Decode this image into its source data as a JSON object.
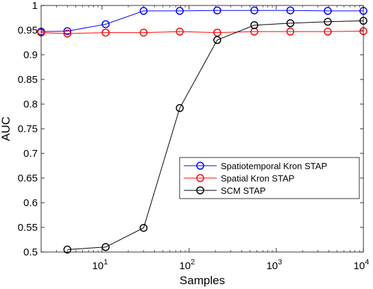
{
  "chart_data": {
    "type": "line",
    "xscale": "log",
    "xlim": [
      2,
      10000
    ],
    "ylim": [
      0.5,
      1
    ],
    "xlabel": "Samples",
    "ylabel": "AUC",
    "grid": false,
    "legend_position": "center-right",
    "x_ticks": [
      {
        "value": 10,
        "base": "10",
        "exp": "1"
      },
      {
        "value": 100,
        "base": "10",
        "exp": "2"
      },
      {
        "value": 1000,
        "base": "10",
        "exp": "3"
      },
      {
        "value": 10000,
        "base": "10",
        "exp": "4"
      }
    ],
    "y_ticks": [
      {
        "value": 0.5,
        "label": "0.5"
      },
      {
        "value": 0.55,
        "label": "0.55"
      },
      {
        "value": 0.6,
        "label": "0.6"
      },
      {
        "value": 0.65,
        "label": "0.65"
      },
      {
        "value": 0.7,
        "label": "0.7"
      },
      {
        "value": 0.75,
        "label": "0.75"
      },
      {
        "value": 0.8,
        "label": "0.8"
      },
      {
        "value": 0.85,
        "label": "0.85"
      },
      {
        "value": 0.9,
        "label": "0.9"
      },
      {
        "value": 0.95,
        "label": "0.95"
      },
      {
        "value": 1,
        "label": "1"
      }
    ],
    "series": [
      {
        "name": "Spatiotemporal Kron STAP",
        "color": "#0000ff",
        "marker": "circle",
        "x": [
          2,
          4,
          11,
          30,
          78,
          210,
          560,
          1450,
          3900,
          10000
        ],
        "y": [
          0.947,
          0.948,
          0.962,
          0.989,
          0.989,
          0.99,
          0.99,
          0.99,
          0.989,
          0.989
        ]
      },
      {
        "name": "Spatial Kron STAP",
        "color": "#ff0000",
        "marker": "circle",
        "x": [
          2,
          4,
          11,
          30,
          78,
          210,
          560,
          1450,
          3900,
          10000
        ],
        "y": [
          0.945,
          0.943,
          0.945,
          0.945,
          0.947,
          0.945,
          0.947,
          0.947,
          0.947,
          0.948
        ]
      },
      {
        "name": "SCM STAP",
        "color": "#000000",
        "marker": "circle",
        "x": [
          4,
          11,
          30,
          78,
          210,
          560,
          1450,
          3900,
          10000
        ],
        "y": [
          0.505,
          0.51,
          0.549,
          0.792,
          0.93,
          0.96,
          0.964,
          0.967,
          0.969
        ]
      }
    ]
  }
}
